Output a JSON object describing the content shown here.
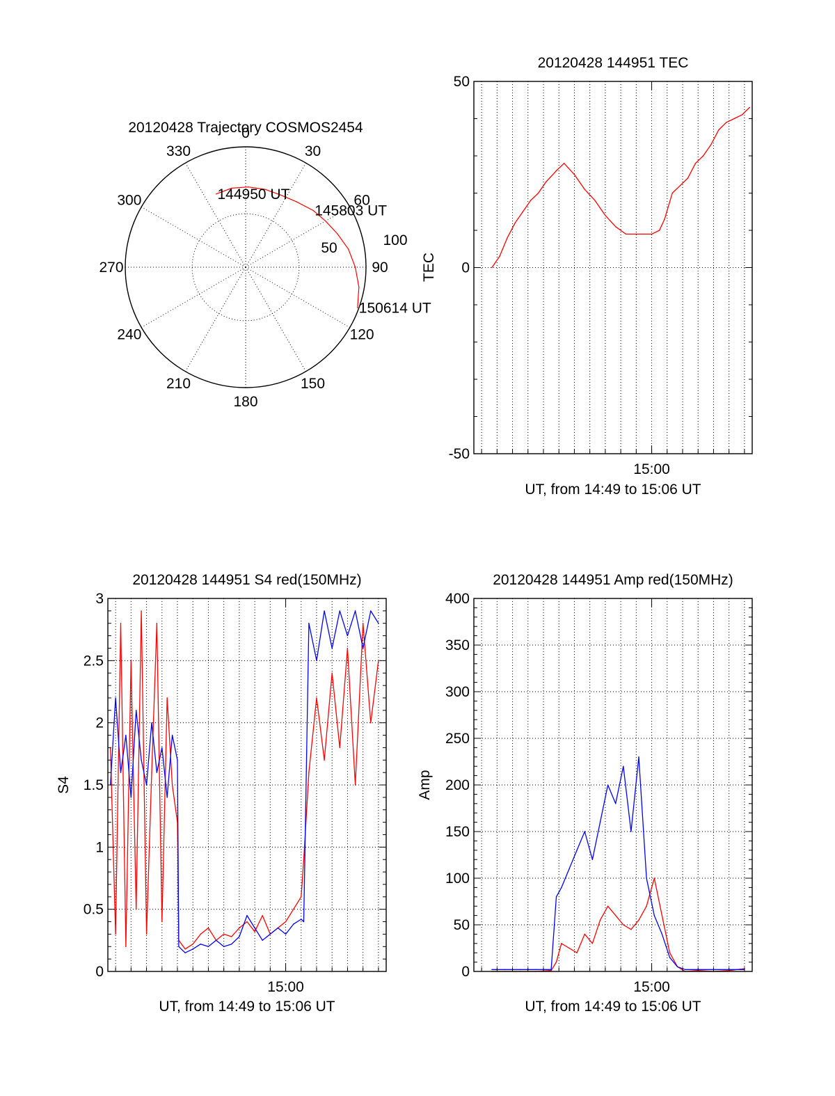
{
  "colors": {
    "series_1": "#ff0000",
    "series_2": "#0000ff",
    "axes": "#000000",
    "background": "#ffffff"
  },
  "chart_data": [
    {
      "id": "trajectory",
      "type": "scatter",
      "title": "20120428 Trajectory COSMOS2454",
      "projection": "polar",
      "azimuth_labels": [
        "0",
        "30",
        "60",
        "90",
        "120",
        "150",
        "180",
        "210",
        "240",
        "270",
        "300",
        "330"
      ],
      "radius_labels": [
        "50",
        "100"
      ],
      "elevation_rings": [
        90,
        50,
        0
      ],
      "grid": true,
      "series": [
        {
          "color": "#ff0000",
          "points": [
            {
              "az": 338,
              "el": 31
            },
            {
              "az": 350,
              "el": 30
            },
            {
              "az": 2,
              "el": 30
            },
            {
              "az": 14,
              "el": 30
            },
            {
              "az": 26,
              "el": 30
            },
            {
              "az": 38,
              "el": 28
            },
            {
              "az": 50,
              "el": 24
            },
            {
              "az": 60,
              "el": 21
            },
            {
              "az": 70,
              "el": 17
            },
            {
              "az": 80,
              "el": 12
            },
            {
              "az": 90,
              "el": 8
            },
            {
              "az": 100,
              "el": 4
            },
            {
              "az": 110,
              "el": 1
            }
          ]
        }
      ],
      "annotations": [
        {
          "text": "144950 UT",
          "az": 338,
          "el": 31
        },
        {
          "text": "145803 UT",
          "az": 50,
          "el": 24
        },
        {
          "text": "150614 UT",
          "az": 110,
          "el": 1
        }
      ]
    },
    {
      "id": "tec",
      "type": "line",
      "title": "20120428 144951 TEC",
      "xlabel": "UT, from 14:49 to 15:06 UT",
      "ylabel": "TEC",
      "xlim": [
        "14:48:30",
        "15:06:30"
      ],
      "ylim": [
        -50,
        50
      ],
      "yticks": [
        "50",
        "0",
        "-50"
      ],
      "xticks": [
        "15:00"
      ],
      "grid": true,
      "series": [
        {
          "color": "#ff0000",
          "x": [
            "14:49:40",
            "14:50:10",
            "14:50:40",
            "14:51:10",
            "14:51:40",
            "14:52:10",
            "14:52:40",
            "14:53:10",
            "14:53:50",
            "14:54:20",
            "14:55:00",
            "14:55:40",
            "14:56:20",
            "14:57:00",
            "14:57:40",
            "14:58:20",
            "14:59:00",
            "14:59:30",
            "15:00:00",
            "15:00:30",
            "15:00:50",
            "15:01:20",
            "15:01:50",
            "15:02:20",
            "15:02:50",
            "15:03:20",
            "15:03:50",
            "15:04:20",
            "15:04:50",
            "15:05:20",
            "15:05:50",
            "15:06:20"
          ],
          "y": [
            0,
            3,
            8,
            12,
            15,
            18,
            20,
            23,
            26,
            28,
            25,
            21,
            18,
            14,
            11,
            9,
            9,
            9,
            9,
            10,
            13,
            20,
            22,
            24,
            28,
            30,
            33,
            37,
            39,
            40,
            41,
            43
          ]
        }
      ]
    },
    {
      "id": "s4",
      "type": "line",
      "title": "20120428 144951 S4 red(150MHz)",
      "xlabel": "UT, from 14:49 to 15:06 UT",
      "ylabel": "S4",
      "xlim": [
        "14:48:30",
        "15:06:30"
      ],
      "ylim": [
        0,
        3
      ],
      "yticks": [
        "0",
        "0.5",
        "1",
        "1.5",
        "2",
        "2.5",
        "3"
      ],
      "xticks": [
        "15:00"
      ],
      "grid": true,
      "series": [
        {
          "color": "#ff0000",
          "x": [
            "14:48:40",
            "14:49:00",
            "14:49:20",
            "14:49:40",
            "14:50:00",
            "14:50:20",
            "14:50:40",
            "14:51:00",
            "14:51:20",
            "14:51:40",
            "14:52:00",
            "14:52:20",
            "14:52:40",
            "14:53:00",
            "14:53:05",
            "14:53:30",
            "14:54:00",
            "14:54:30",
            "14:55:00",
            "14:55:30",
            "14:56:00",
            "14:56:30",
            "14:57:00",
            "14:57:30",
            "14:58:00",
            "14:58:30",
            "14:59:00",
            "14:59:30",
            "15:00:00",
            "15:00:30",
            "15:01:00",
            "15:01:10",
            "15:01:30",
            "15:02:00",
            "15:02:30",
            "15:03:00",
            "15:03:30",
            "15:04:00",
            "15:04:30",
            "15:05:00",
            "15:05:30",
            "15:06:00"
          ],
          "y": [
            1.8,
            0.3,
            2.8,
            0.2,
            2.5,
            0.5,
            2.9,
            0.3,
            1.6,
            2.8,
            0.4,
            2.2,
            1.5,
            1.2,
            0.25,
            0.18,
            0.22,
            0.3,
            0.35,
            0.25,
            0.3,
            0.28,
            0.35,
            0.4,
            0.32,
            0.45,
            0.3,
            0.35,
            0.4,
            0.5,
            0.6,
            0.9,
            1.6,
            2.2,
            1.7,
            2.4,
            1.8,
            2.6,
            1.5,
            2.8,
            2.0,
            2.5
          ]
        },
        {
          "color": "#0000ff",
          "x": [
            "14:48:40",
            "14:49:00",
            "14:49:20",
            "14:49:40",
            "14:50:00",
            "14:50:20",
            "14:50:40",
            "14:51:00",
            "14:51:20",
            "14:51:40",
            "14:52:00",
            "14:52:20",
            "14:52:40",
            "14:53:00",
            "14:53:05",
            "14:53:30",
            "14:54:00",
            "14:54:30",
            "14:55:00",
            "14:55:30",
            "14:56:00",
            "14:56:30",
            "14:57:00",
            "14:57:30",
            "14:58:00",
            "14:58:30",
            "14:59:00",
            "14:59:30",
            "15:00:00",
            "15:00:30",
            "15:01:00",
            "15:01:10",
            "15:01:30",
            "15:02:00",
            "15:02:30",
            "15:03:00",
            "15:03:30",
            "15:04:00",
            "15:04:30",
            "15:05:00",
            "15:05:30",
            "15:06:00"
          ],
          "y": [
            1.5,
            2.2,
            1.6,
            1.9,
            1.4,
            2.1,
            1.7,
            1.5,
            2.0,
            1.6,
            1.8,
            1.4,
            1.9,
            1.7,
            0.2,
            0.15,
            0.18,
            0.22,
            0.2,
            0.25,
            0.2,
            0.22,
            0.28,
            0.45,
            0.35,
            0.25,
            0.3,
            0.35,
            0.3,
            0.38,
            0.42,
            0.4,
            2.8,
            2.5,
            2.9,
            2.6,
            2.9,
            2.7,
            2.9,
            2.6,
            2.9,
            2.8
          ]
        }
      ]
    },
    {
      "id": "amp",
      "type": "line",
      "title": "20120428 144951 Amp red(150MHz)",
      "xlabel": "UT, from 14:49 to 15:06 UT",
      "ylabel": "Amp",
      "xlim": [
        "14:48:30",
        "15:06:30"
      ],
      "ylim": [
        0,
        400
      ],
      "yticks": [
        "0",
        "50",
        "100",
        "150",
        "200",
        "250",
        "300",
        "350",
        "400"
      ],
      "xticks": [
        "15:00"
      ],
      "grid": true,
      "series": [
        {
          "color": "#ff0000",
          "x": [
            "14:49:40",
            "14:50:30",
            "14:51:30",
            "14:52:30",
            "14:53:30",
            "14:53:50",
            "14:54:10",
            "14:54:40",
            "14:55:10",
            "14:55:40",
            "14:56:10",
            "14:56:40",
            "14:57:10",
            "14:57:40",
            "14:58:10",
            "14:58:40",
            "14:59:10",
            "14:59:40",
            "15:00:10",
            "15:00:40",
            "15:01:10",
            "15:01:40",
            "15:02:10",
            "15:03:00",
            "15:04:00",
            "15:05:00",
            "15:06:00"
          ],
          "y": [
            0,
            0,
            0,
            0,
            1,
            10,
            30,
            25,
            20,
            40,
            30,
            55,
            70,
            60,
            50,
            45,
            55,
            70,
            100,
            60,
            20,
            5,
            0,
            1,
            0,
            1,
            3
          ]
        },
        {
          "color": "#0000ff",
          "x": [
            "14:49:40",
            "14:50:30",
            "14:51:30",
            "14:52:30",
            "14:53:30",
            "14:53:50",
            "14:54:10",
            "14:54:40",
            "14:55:10",
            "14:55:40",
            "14:56:10",
            "14:56:40",
            "14:57:10",
            "14:57:40",
            "14:58:10",
            "14:58:40",
            "14:59:10",
            "14:59:40",
            "15:00:10",
            "15:00:40",
            "15:01:10",
            "15:01:40",
            "15:02:10",
            "15:03:00",
            "15:04:00",
            "15:05:00",
            "15:06:00"
          ],
          "y": [
            2,
            2,
            2,
            2,
            2,
            80,
            90,
            110,
            130,
            150,
            120,
            160,
            200,
            180,
            220,
            150,
            230,
            100,
            60,
            40,
            15,
            5,
            2,
            2,
            2,
            2,
            2
          ]
        }
      ]
    }
  ]
}
